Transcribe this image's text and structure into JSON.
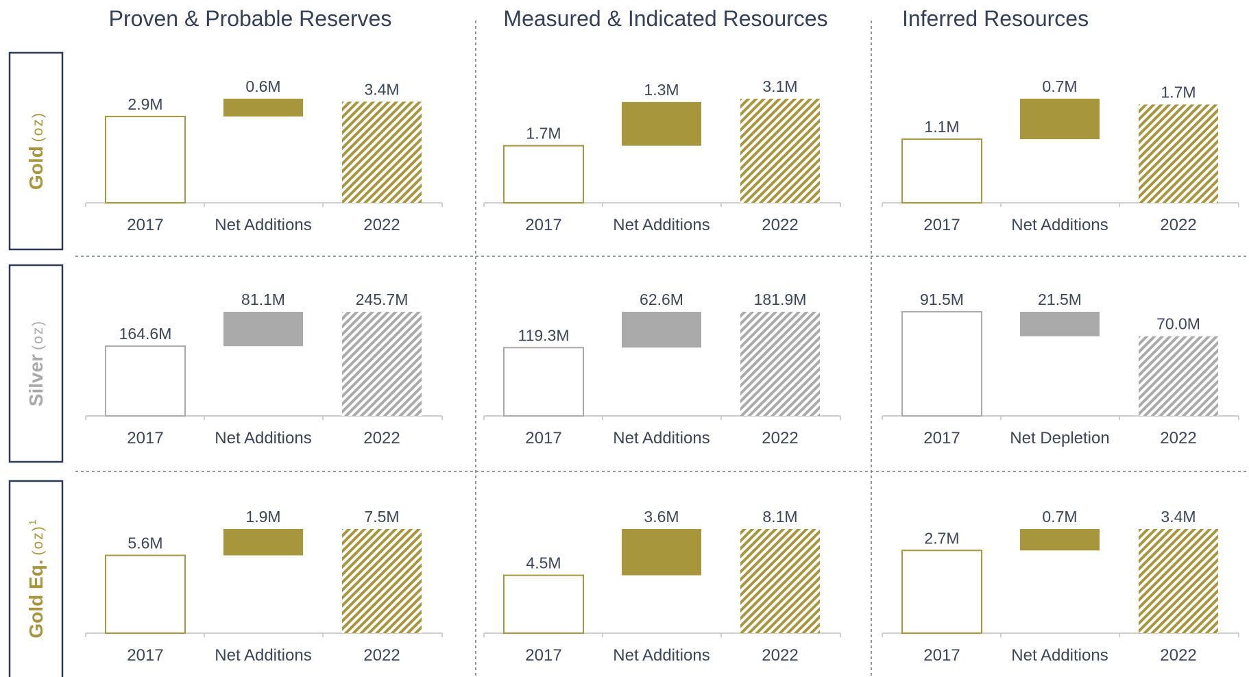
{
  "columns": [
    "Proven & Probable Reserves",
    "Measured & Indicated Resources",
    "Inferred Resources"
  ],
  "rows": [
    {
      "label": "Gold",
      "unit": "(oz)",
      "color": "#a8963c"
    },
    {
      "label": "Silver",
      "unit": "(oz)",
      "color": "#a9a9a9"
    },
    {
      "label": "Gold Eq.",
      "unit": "(oz)",
      "note": "1",
      "color": "#a8963c"
    }
  ],
  "chart_data": [
    {
      "type": "waterfall",
      "categories": [
        "2017",
        "Net Additions",
        "2022"
      ],
      "values": [
        2.9,
        0.6,
        3.4
      ],
      "value_labels": [
        "2.9M",
        "0.6M",
        "3.4M"
      ],
      "color": "#a8963c"
    },
    {
      "type": "waterfall",
      "categories": [
        "2017",
        "Net Additions",
        "2022"
      ],
      "values": [
        1.7,
        1.3,
        3.1
      ],
      "value_labels": [
        "1.7M",
        "1.3M",
        "3.1M"
      ],
      "color": "#a8963c"
    },
    {
      "type": "waterfall",
      "categories": [
        "2017",
        "Net Additions",
        "2022"
      ],
      "values": [
        1.1,
        0.7,
        1.7
      ],
      "value_labels": [
        "1.1M",
        "0.7M",
        "1.7M"
      ],
      "color": "#a8963c"
    },
    {
      "type": "waterfall",
      "categories": [
        "2017",
        "Net Additions",
        "2022"
      ],
      "values": [
        164.6,
        81.1,
        245.7
      ],
      "value_labels": [
        "164.6M",
        "81.1M",
        "245.7M"
      ],
      "color": "#aaaaaa"
    },
    {
      "type": "waterfall",
      "categories": [
        "2017",
        "Net Additions",
        "2022"
      ],
      "values": [
        119.3,
        62.6,
        181.9
      ],
      "value_labels": [
        "119.3M",
        "62.6M",
        "181.9M"
      ],
      "color": "#aaaaaa"
    },
    {
      "type": "waterfall",
      "categories": [
        "2017",
        "Net Depletion",
        "2022"
      ],
      "values": [
        91.5,
        -21.5,
        70.0
      ],
      "value_labels": [
        "91.5M",
        "21.5M",
        "70.0M"
      ],
      "color": "#aaaaaa"
    },
    {
      "type": "waterfall",
      "categories": [
        "2017",
        "Net Additions",
        "2022"
      ],
      "values": [
        5.6,
        1.9,
        7.5
      ],
      "value_labels": [
        "5.6M",
        "1.9M",
        "7.5M"
      ],
      "color": "#a8963c"
    },
    {
      "type": "waterfall",
      "categories": [
        "2017",
        "Net Additions",
        "2022"
      ],
      "values": [
        4.5,
        3.6,
        8.1
      ],
      "value_labels": [
        "4.5M",
        "3.6M",
        "8.1M"
      ],
      "color": "#a8963c"
    },
    {
      "type": "waterfall",
      "categories": [
        "2017",
        "Net Additions",
        "2022"
      ],
      "values": [
        2.7,
        0.7,
        3.4
      ],
      "value_labels": [
        "2.7M",
        "0.7M",
        "3.4M"
      ],
      "color": "#a8963c"
    }
  ]
}
